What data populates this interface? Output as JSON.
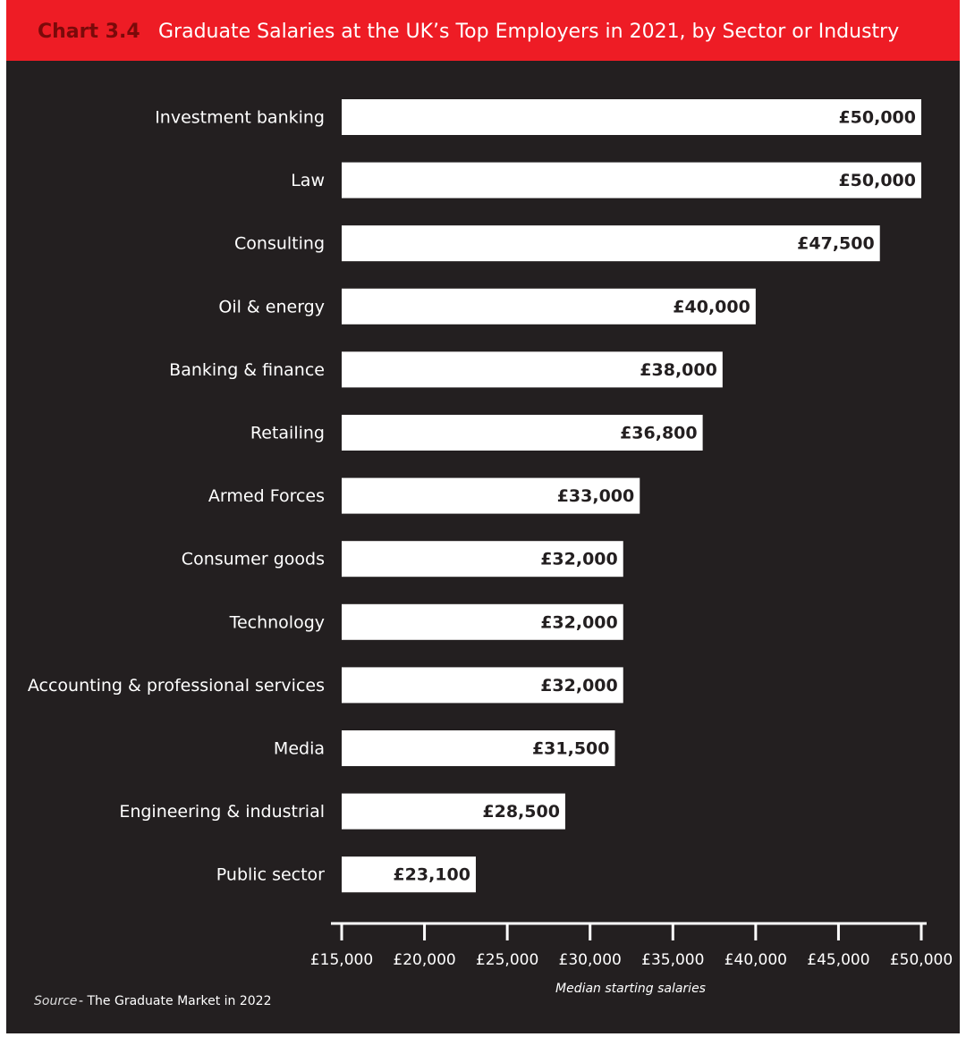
{
  "chart_data": {
    "type": "bar",
    "orientation": "horizontal",
    "chart_label": "Chart 3.4",
    "title": "Graduate Salaries at the UK’s Top Employers in 2021, by Sector or Industry",
    "categories": [
      "Investment banking",
      "Law",
      "Consulting",
      "Oil & energy",
      "Banking & finance",
      "Retailing",
      "Armed Forces",
      "Consumer goods",
      "Technology",
      "Accounting & professional services",
      "Media",
      "Engineering & industrial",
      "Public sector"
    ],
    "values": [
      50000,
      50000,
      47500,
      40000,
      38000,
      36800,
      33000,
      32000,
      32000,
      32000,
      31500,
      28500,
      23100
    ],
    "value_labels": [
      "£50,000",
      "£50,000",
      "£47,500",
      "£40,000",
      "£38,000",
      "£36,800",
      "£33,000",
      "£32,000",
      "£32,000",
      "£32,000",
      "£31,500",
      "£28,500",
      "£23,100"
    ],
    "color": "#ffffff",
    "xlim": [
      15000,
      50000
    ],
    "xticks": [
      {
        "value": 15000,
        "label": "£15,000"
      },
      {
        "value": 20000,
        "label": "£20,000"
      },
      {
        "value": 25000,
        "label": "£25,000"
      },
      {
        "value": 30000,
        "label": "£30,000"
      },
      {
        "value": 35000,
        "label": "£35,000"
      },
      {
        "value": 40000,
        "label": "£40,000"
      },
      {
        "value": 45000,
        "label": "£45,000"
      },
      {
        "value": 50000,
        "label": "£50,000"
      }
    ],
    "x_label": "Median starting salaries",
    "source_label": "Source",
    "source_text": "- The Graduate Market in 2022"
  }
}
